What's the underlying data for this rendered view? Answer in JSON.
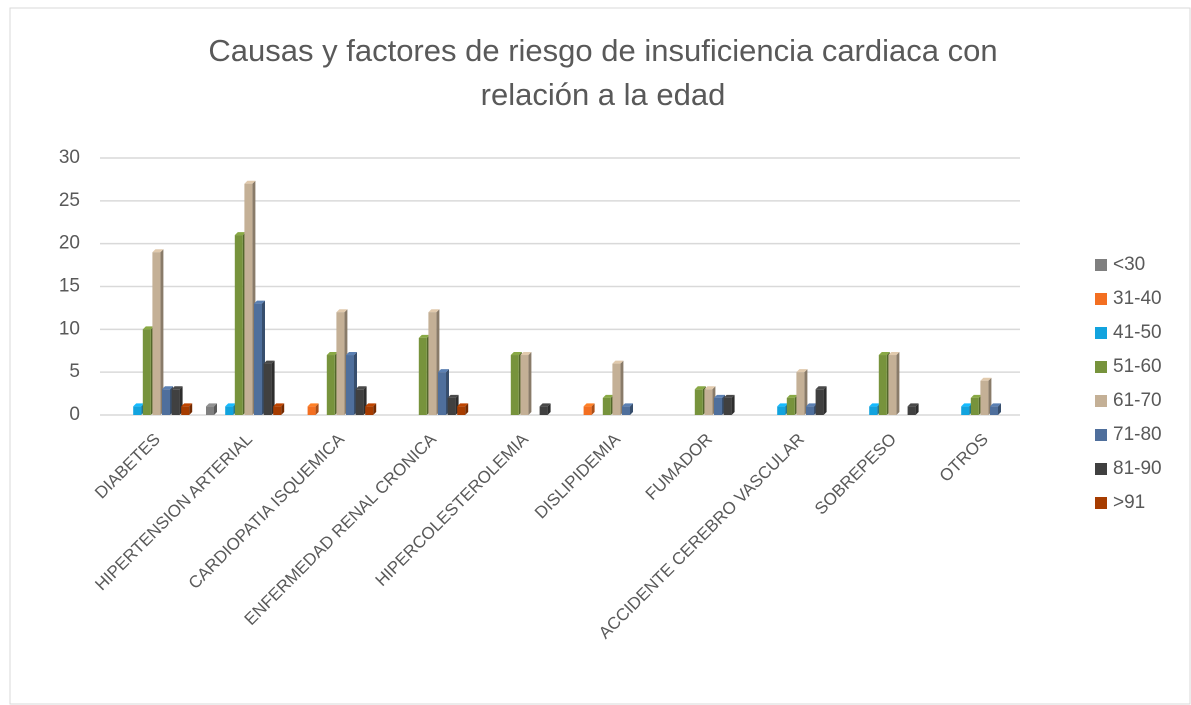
{
  "chart_data": {
    "type": "bar",
    "title": [
      "Causas y factores de riesgo de insuficiencia cardiaca con",
      "relación a la edad"
    ],
    "categories": [
      "DIABETES",
      "HIPERTENSION ARTERIAL",
      "CARDIOPATIA ISQUEMICA",
      "ENFERMEDAD RENAL CRONICA",
      "HIPERCOLESTEROLEMIA",
      "DISLIPIDEMIA",
      "FUMADOR",
      "ACCIDENTE CEREBRO VASCULAR",
      "SOBREPESO",
      "OTROS"
    ],
    "series": [
      {
        "name": "<30",
        "color": "#7f7f7f",
        "values": [
          0,
          1,
          0,
          0,
          0,
          0,
          0,
          0,
          0,
          0
        ]
      },
      {
        "name": "31-40",
        "color": "#f36f21",
        "values": [
          0,
          0,
          1,
          0,
          0,
          1,
          0,
          0,
          0,
          0
        ]
      },
      {
        "name": "41-50",
        "color": "#12a3de",
        "values": [
          1,
          1,
          0,
          0,
          0,
          0,
          0,
          1,
          1,
          1
        ]
      },
      {
        "name": "51-60",
        "color": "#77933c",
        "values": [
          10,
          21,
          7,
          9,
          7,
          2,
          3,
          2,
          7,
          2
        ]
      },
      {
        "name": "61-70",
        "color": "#c4b096",
        "values": [
          19,
          27,
          12,
          12,
          7,
          6,
          3,
          5,
          7,
          4
        ]
      },
      {
        "name": "71-80",
        "color": "#4f6f9c",
        "values": [
          3,
          13,
          7,
          5,
          0,
          1,
          2,
          1,
          0,
          1
        ]
      },
      {
        "name": "81-90",
        "color": "#404040",
        "values": [
          3,
          6,
          3,
          2,
          1,
          0,
          2,
          3,
          1,
          0
        ]
      },
      {
        "name": ">91",
        "color": "#a63c00",
        "values": [
          1,
          1,
          1,
          1,
          0,
          0,
          0,
          0,
          0,
          0
        ]
      }
    ],
    "ylim": [
      0,
      30
    ],
    "yticks": [
      0,
      5,
      10,
      15,
      20,
      25,
      30
    ],
    "grid": true,
    "legend": "right"
  }
}
